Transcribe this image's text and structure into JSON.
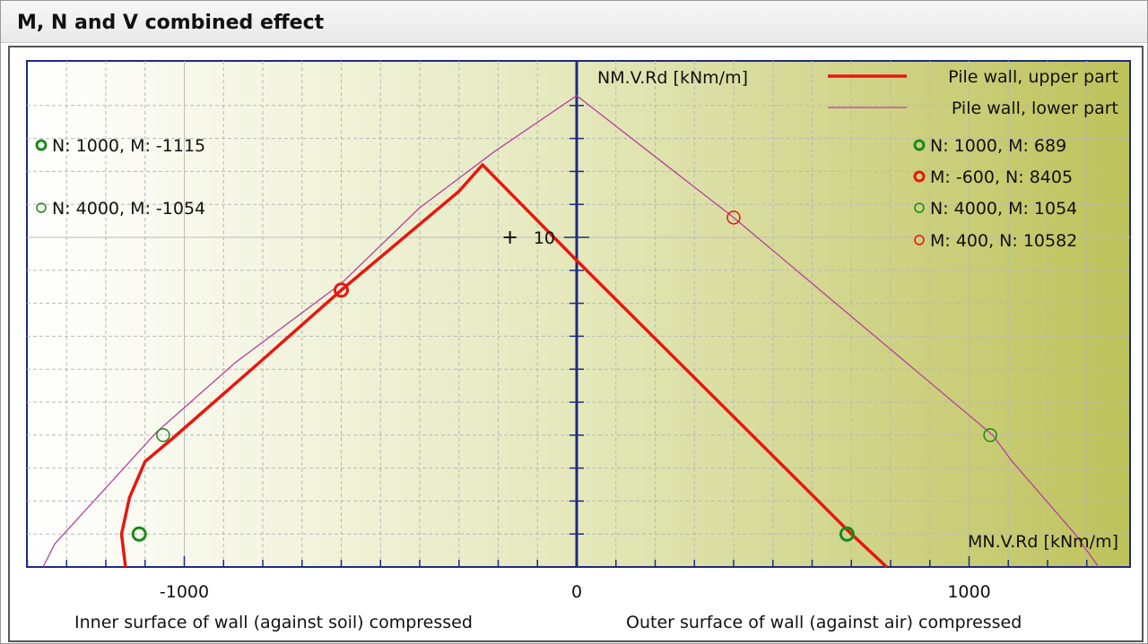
{
  "window": {
    "title": "M, N and V combined effect"
  },
  "chart_data": {
    "type": "line",
    "title": "M, N and V combined effect",
    "xlabel": "MN.V.Rd [kNm/m]",
    "ylabel": "NM.V.Rd [kNm/m]",
    "xlim": [
      -1400,
      1360
    ],
    "ylim": [
      0,
      14.6
    ],
    "x_ticks": [
      -1000,
      0,
      1000
    ],
    "x_tick_labels": [
      "-1000",
      "0",
      "1000"
    ],
    "y_ticks": [
      10
    ],
    "y_tick_labels": [
      "10"
    ],
    "grid": true,
    "legend_position": "top-right",
    "bottom_left_caption": "Inner surface of wall (against soil) compressed",
    "bottom_right_caption": "Outer surface of wall (against air) compressed",
    "series": [
      {
        "name": "Pile wall, upper part",
        "color": "#e8170f",
        "width": "thick",
        "points": [
          [
            790,
            0
          ],
          [
            700,
            1.0
          ],
          [
            0,
            9.3
          ],
          [
            -240,
            12.2
          ],
          [
            -300,
            11.4
          ],
          [
            -600,
            8.4
          ],
          [
            -790,
            6.4
          ],
          [
            -1030,
            3.9
          ],
          [
            -1100,
            3.2
          ],
          [
            -1140,
            2.1
          ],
          [
            -1160,
            1.0
          ],
          [
            -1150,
            0
          ]
        ]
      },
      {
        "name": "Pile wall, lower part",
        "color": "#b5419b",
        "width": "thin",
        "points": [
          [
            1330,
            0
          ],
          [
            1270,
            1.0
          ],
          [
            1110,
            3.2
          ],
          [
            1060,
            4.0
          ],
          [
            400,
            10.6
          ],
          [
            0,
            14.3
          ],
          [
            -210,
            12.6
          ],
          [
            -400,
            10.9
          ],
          [
            -600,
            8.6
          ],
          [
            -870,
            6.2
          ],
          [
            -1070,
            4.1
          ],
          [
            -1330,
            0.7
          ],
          [
            -1360,
            0
          ]
        ]
      }
    ],
    "markers": [
      {
        "label": "N: 1000, M: -1115",
        "x": -1115,
        "y": 1.0,
        "color": "#1a8a1a",
        "bold": true,
        "legend_side": "left"
      },
      {
        "label": "N: 4000, M: -1054",
        "x": -1054,
        "y": 4.0,
        "color": "#1a8a1a",
        "bold": false,
        "legend_side": "left"
      },
      {
        "label": "N: 1000, M: 689",
        "x": 689,
        "y": 1.0,
        "color": "#1a8a1a",
        "bold": true,
        "legend_side": "right"
      },
      {
        "label": "M: -600, N: 8405",
        "x": -600,
        "y": 8.4,
        "color": "#e8170f",
        "bold": true,
        "legend_side": "right"
      },
      {
        "label": "N: 4000, M: 1054",
        "x": 1054,
        "y": 4.0,
        "color": "#1a8a1a",
        "bold": false,
        "legend_side": "right"
      },
      {
        "label": "M: 400, N: 10582",
        "x": 400,
        "y": 10.6,
        "color": "#e8170f",
        "bold": false,
        "legend_side": "right"
      }
    ],
    "crosshair": {
      "x": -170,
      "y": 10.0
    }
  }
}
